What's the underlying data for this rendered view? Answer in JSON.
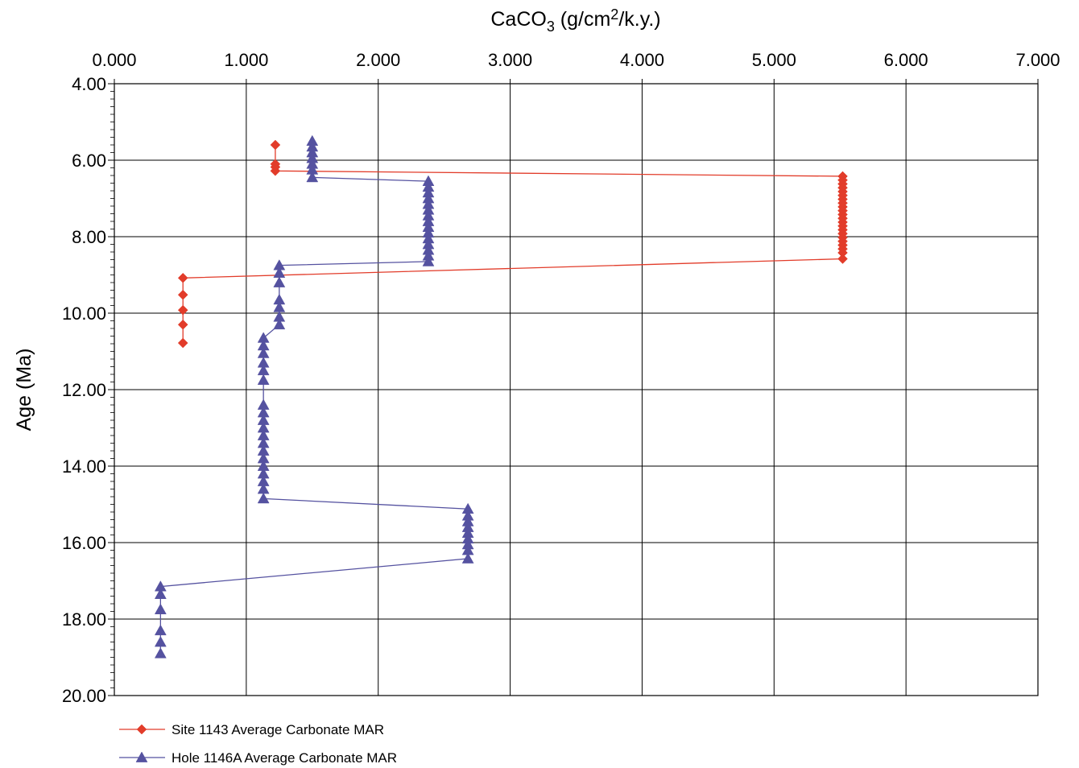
{
  "chart_data": {
    "type": "line",
    "title": "",
    "xlabel": {
      "prefix": "CaCO",
      "sub": "3",
      "mid": " (g/cm",
      "sup": "2",
      "suffix": "/k.y.)"
    },
    "ylabel": "Age (Ma)",
    "x_axis_position": "top",
    "y_axis_inverted": true,
    "xlim": [
      0,
      7
    ],
    "ylim": [
      4,
      20
    ],
    "x_ticks": [
      0,
      1,
      2,
      3,
      4,
      5,
      6,
      7
    ],
    "x_tick_labels": [
      "0.000",
      "1.000",
      "2.000",
      "3.000",
      "4.000",
      "5.000",
      "6.000",
      "7.000"
    ],
    "y_ticks": [
      4,
      6,
      8,
      10,
      12,
      14,
      16,
      18,
      20
    ],
    "y_tick_labels": [
      "4.00",
      "6.00",
      "8.00",
      "10.00",
      "12.00",
      "14.00",
      "16.00",
      "18.00",
      "20.00"
    ],
    "grid": true,
    "legend_position": "bottom-left",
    "series": [
      {
        "name": "Site 1143 Average Carbonate MAR",
        "color": "#e23c2a",
        "marker": "diamond",
        "points": [
          [
            1.22,
            5.6
          ],
          [
            1.22,
            6.1
          ],
          [
            1.22,
            6.18
          ],
          [
            1.22,
            6.28
          ],
          [
            5.52,
            6.42
          ],
          [
            5.52,
            6.52
          ],
          [
            5.52,
            6.62
          ],
          [
            5.52,
            6.72
          ],
          [
            5.52,
            6.82
          ],
          [
            5.52,
            6.92
          ],
          [
            5.52,
            7.02
          ],
          [
            5.52,
            7.12
          ],
          [
            5.52,
            7.22
          ],
          [
            5.52,
            7.32
          ],
          [
            5.52,
            7.42
          ],
          [
            5.52,
            7.52
          ],
          [
            5.52,
            7.62
          ],
          [
            5.52,
            7.72
          ],
          [
            5.52,
            7.82
          ],
          [
            5.52,
            7.92
          ],
          [
            5.52,
            8.02
          ],
          [
            5.52,
            8.12
          ],
          [
            5.52,
            8.22
          ],
          [
            5.52,
            8.32
          ],
          [
            5.52,
            8.42
          ],
          [
            5.52,
            8.58
          ],
          [
            0.52,
            9.08
          ],
          [
            0.52,
            9.52
          ],
          [
            0.52,
            9.92
          ],
          [
            0.52,
            10.3
          ],
          [
            0.52,
            10.78
          ]
        ]
      },
      {
        "name": "Hole 1146A Average Carbonate MAR",
        "color": "#5552a0",
        "marker": "triangle",
        "points": [
          [
            1.5,
            5.5
          ],
          [
            1.5,
            5.65
          ],
          [
            1.5,
            5.8
          ],
          [
            1.5,
            5.95
          ],
          [
            1.5,
            6.1
          ],
          [
            1.5,
            6.25
          ],
          [
            1.5,
            6.45
          ],
          [
            2.38,
            6.55
          ],
          [
            2.38,
            6.7
          ],
          [
            2.38,
            6.85
          ],
          [
            2.38,
            7.0
          ],
          [
            2.38,
            7.15
          ],
          [
            2.38,
            7.3
          ],
          [
            2.38,
            7.45
          ],
          [
            2.38,
            7.6
          ],
          [
            2.38,
            7.75
          ],
          [
            2.38,
            7.9
          ],
          [
            2.38,
            8.05
          ],
          [
            2.38,
            8.2
          ],
          [
            2.38,
            8.35
          ],
          [
            2.38,
            8.5
          ],
          [
            2.38,
            8.65
          ],
          [
            1.25,
            8.75
          ],
          [
            1.25,
            8.95
          ],
          [
            1.25,
            9.2
          ],
          [
            1.25,
            9.65
          ],
          [
            1.25,
            9.85
          ],
          [
            1.25,
            10.1
          ],
          [
            1.25,
            10.3
          ],
          [
            1.13,
            10.65
          ],
          [
            1.13,
            10.85
          ],
          [
            1.13,
            11.05
          ],
          [
            1.13,
            11.3
          ],
          [
            1.13,
            11.5
          ],
          [
            1.13,
            11.75
          ],
          [
            1.13,
            12.4
          ],
          [
            1.13,
            12.6
          ],
          [
            1.13,
            12.8
          ],
          [
            1.13,
            13.0
          ],
          [
            1.13,
            13.2
          ],
          [
            1.13,
            13.4
          ],
          [
            1.13,
            13.6
          ],
          [
            1.13,
            13.8
          ],
          [
            1.13,
            14.0
          ],
          [
            1.13,
            14.2
          ],
          [
            1.13,
            14.4
          ],
          [
            1.13,
            14.6
          ],
          [
            1.13,
            14.85
          ],
          [
            2.68,
            15.12
          ],
          [
            2.68,
            15.3
          ],
          [
            2.68,
            15.45
          ],
          [
            2.68,
            15.6
          ],
          [
            2.68,
            15.75
          ],
          [
            2.68,
            15.9
          ],
          [
            2.68,
            16.05
          ],
          [
            2.68,
            16.2
          ],
          [
            2.68,
            16.42
          ],
          [
            0.35,
            17.15
          ],
          [
            0.35,
            17.35
          ],
          [
            0.35,
            17.75
          ],
          [
            0.35,
            18.3
          ],
          [
            0.35,
            18.6
          ],
          [
            0.35,
            18.9
          ]
        ]
      }
    ]
  }
}
